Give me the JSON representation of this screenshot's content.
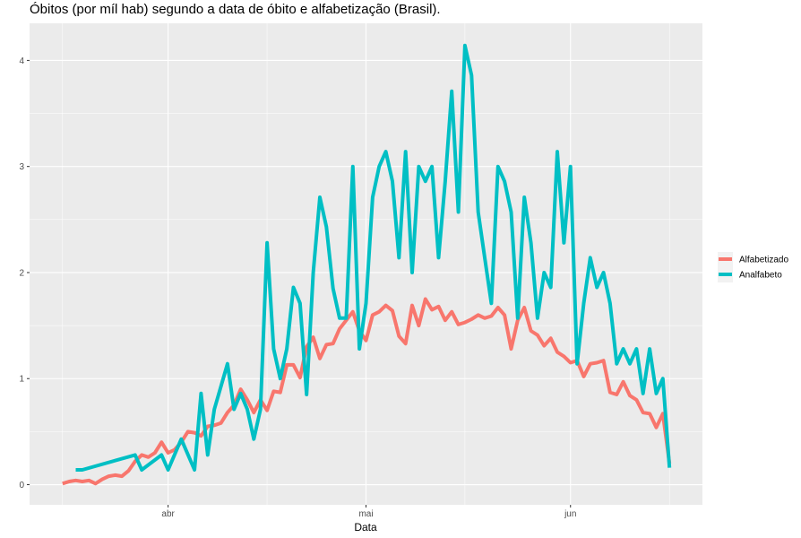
{
  "title": "Óbitos (por míl hab) segundo a data de óbito e alfabetização (Brasil).",
  "chart_data": {
    "type": "line",
    "title": "Óbitos (por míl hab) segundo a data de óbito e alfabetização (Brasil).",
    "xlabel": "Data",
    "ylabel": "",
    "x_tick_labels": [
      "abr",
      "mai",
      "jun"
    ],
    "y_ticks": [
      0,
      1,
      2,
      3,
      4
    ],
    "xlim": [
      "2020-03-11",
      "2020-06-21"
    ],
    "ylim": [
      -0.19,
      4.35
    ],
    "grid": true,
    "legend_position": "right",
    "colors": {
      "Alfabetizado": "#F8766D",
      "Analfabeto": "#00BFC4",
      "panel": "#EBEBEB",
      "grid": "#FFFFFF"
    },
    "series": [
      {
        "name": "Alfabetizado",
        "x": [
          "2020-03-16",
          "2020-03-17",
          "2020-03-18",
          "2020-03-19",
          "2020-03-20",
          "2020-03-21",
          "2020-03-22",
          "2020-03-23",
          "2020-03-24",
          "2020-03-25",
          "2020-03-26",
          "2020-03-27",
          "2020-03-28",
          "2020-03-29",
          "2020-03-30",
          "2020-03-31",
          "2020-04-01",
          "2020-04-02",
          "2020-04-03",
          "2020-04-04",
          "2020-04-05",
          "2020-04-06",
          "2020-04-07",
          "2020-04-08",
          "2020-04-09",
          "2020-04-10",
          "2020-04-11",
          "2020-04-12",
          "2020-04-13",
          "2020-04-14",
          "2020-04-15",
          "2020-04-16",
          "2020-04-17",
          "2020-04-18",
          "2020-04-19",
          "2020-04-20",
          "2020-04-21",
          "2020-04-22",
          "2020-04-23",
          "2020-04-24",
          "2020-04-25",
          "2020-04-26",
          "2020-04-27",
          "2020-04-28",
          "2020-04-29",
          "2020-04-30",
          "2020-05-01",
          "2020-05-02",
          "2020-05-03",
          "2020-05-04",
          "2020-05-05",
          "2020-05-06",
          "2020-05-07",
          "2020-05-08",
          "2020-05-09",
          "2020-05-10",
          "2020-05-11",
          "2020-05-12",
          "2020-05-13",
          "2020-05-14",
          "2020-05-15",
          "2020-05-16",
          "2020-05-17",
          "2020-05-18",
          "2020-05-19",
          "2020-05-20",
          "2020-05-21",
          "2020-05-22",
          "2020-05-23",
          "2020-05-24",
          "2020-05-25",
          "2020-05-26",
          "2020-05-27",
          "2020-05-28",
          "2020-05-29",
          "2020-05-30",
          "2020-05-31",
          "2020-06-01",
          "2020-06-02",
          "2020-06-03",
          "2020-06-04",
          "2020-06-05",
          "2020-06-06",
          "2020-06-07",
          "2020-06-08",
          "2020-06-09",
          "2020-06-10",
          "2020-06-11",
          "2020-06-12",
          "2020-06-13",
          "2020-06-14",
          "2020-06-15",
          "2020-06-16"
        ],
        "values": [
          0.01,
          0.03,
          0.04,
          0.03,
          0.04,
          0.01,
          0.05,
          0.08,
          0.09,
          0.08,
          0.13,
          0.22,
          0.28,
          0.26,
          0.3,
          0.4,
          0.3,
          0.33,
          0.4,
          0.5,
          0.49,
          0.46,
          0.55,
          0.56,
          0.58,
          0.68,
          0.75,
          0.9,
          0.8,
          0.68,
          0.8,
          0.7,
          0.88,
          0.87,
          1.13,
          1.13,
          1.01,
          1.3,
          1.39,
          1.19,
          1.32,
          1.33,
          1.47,
          1.55,
          1.63,
          1.45,
          1.36,
          1.6,
          1.63,
          1.69,
          1.64,
          1.4,
          1.33,
          1.69,
          1.5,
          1.75,
          1.65,
          1.68,
          1.55,
          1.63,
          1.51,
          1.53,
          1.56,
          1.6,
          1.57,
          1.59,
          1.67,
          1.6,
          1.28,
          1.55,
          1.67,
          1.45,
          1.41,
          1.31,
          1.38,
          1.25,
          1.21,
          1.15,
          1.17,
          1.02,
          1.14,
          1.15,
          1.17,
          0.87,
          0.85,
          0.97,
          0.84,
          0.8,
          0.68,
          0.67,
          0.54,
          0.67,
          0.2
        ]
      },
      {
        "name": "Analfabeto",
        "x": [
          "2020-03-18",
          "2020-03-19",
          "2020-03-27",
          "2020-03-28",
          "2020-03-31",
          "2020-04-01",
          "2020-04-03",
          "2020-04-05",
          "2020-04-06",
          "2020-04-07",
          "2020-04-08",
          "2020-04-10",
          "2020-04-11",
          "2020-04-12",
          "2020-04-13",
          "2020-04-14",
          "2020-04-15",
          "2020-04-16",
          "2020-04-17",
          "2020-04-18",
          "2020-04-19",
          "2020-04-20",
          "2020-04-21",
          "2020-04-22",
          "2020-04-23",
          "2020-04-24",
          "2020-04-25",
          "2020-04-26",
          "2020-04-27",
          "2020-04-28",
          "2020-04-29",
          "2020-04-30",
          "2020-05-01",
          "2020-05-02",
          "2020-05-03",
          "2020-05-04",
          "2020-05-05",
          "2020-05-06",
          "2020-05-07",
          "2020-05-08",
          "2020-05-09",
          "2020-05-10",
          "2020-05-11",
          "2020-05-12",
          "2020-05-13",
          "2020-05-14",
          "2020-05-15",
          "2020-05-16",
          "2020-05-17",
          "2020-05-18",
          "2020-05-19",
          "2020-05-20",
          "2020-05-21",
          "2020-05-22",
          "2020-05-23",
          "2020-05-24",
          "2020-05-25",
          "2020-05-26",
          "2020-05-27",
          "2020-05-28",
          "2020-05-29",
          "2020-05-30",
          "2020-05-31",
          "2020-06-01",
          "2020-06-02",
          "2020-06-03",
          "2020-06-04",
          "2020-06-05",
          "2020-06-06",
          "2020-06-07",
          "2020-06-08",
          "2020-06-09",
          "2020-06-10",
          "2020-06-11",
          "2020-06-12",
          "2020-06-13",
          "2020-06-14",
          "2020-06-15",
          "2020-06-16"
        ],
        "values": [
          0.14,
          0.14,
          0.28,
          0.14,
          0.28,
          0.14,
          0.43,
          0.14,
          0.86,
          0.28,
          0.71,
          1.14,
          0.71,
          0.86,
          0.71,
          0.43,
          0.71,
          2.28,
          1.28,
          1.0,
          1.28,
          1.86,
          1.71,
          0.85,
          2.0,
          2.71,
          2.43,
          1.85,
          1.57,
          1.57,
          3.0,
          1.28,
          1.71,
          2.71,
          3.0,
          3.14,
          2.86,
          2.14,
          3.14,
          2.0,
          3.0,
          2.86,
          3.0,
          2.14,
          2.86,
          3.71,
          2.57,
          4.14,
          3.86,
          2.57,
          2.14,
          1.71,
          3.0,
          2.86,
          2.57,
          1.57,
          2.71,
          2.28,
          1.57,
          2.0,
          1.86,
          3.14,
          2.28,
          3.0,
          1.14,
          1.71,
          2.14,
          1.86,
          2.0,
          1.71,
          1.14,
          1.28,
          1.14,
          1.28,
          0.86,
          1.28,
          0.86,
          1.0,
          0.16
        ]
      }
    ]
  }
}
